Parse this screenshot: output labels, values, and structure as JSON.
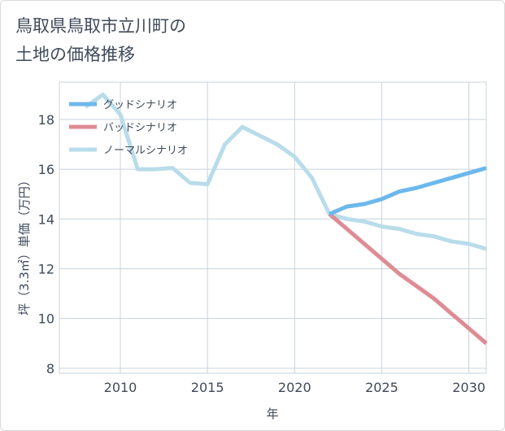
{
  "title": "鳥取県鳥取市立川町の\n土地の価格推移",
  "chart_data": {
    "type": "line",
    "xlabel": "年",
    "ylabel": "坪（3.3㎡）単価（万円）",
    "xlim": [
      2006.5,
      2031
    ],
    "ylim": [
      7.8,
      19.5
    ],
    "xticks": [
      2010,
      2015,
      2020,
      2025,
      2030
    ],
    "yticks": [
      8,
      10,
      12,
      14,
      16,
      18
    ],
    "grid": true,
    "legend_position": "top-left",
    "series": [
      {
        "name": "グッドシナリオ",
        "color": "#6cb8ec",
        "x": [
          2022,
          2023,
          2024,
          2025,
          2026,
          2027,
          2028,
          2029,
          2030,
          2031
        ],
        "y": [
          14.2,
          14.5,
          14.6,
          14.8,
          15.1,
          15.25,
          15.45,
          15.65,
          15.85,
          16.05
        ]
      },
      {
        "name": "バッドシナリオ",
        "color": "#de8c94",
        "x": [
          2022,
          2023,
          2024,
          2025,
          2026,
          2027,
          2028,
          2029,
          2030,
          2031
        ],
        "y": [
          14.2,
          13.6,
          13.0,
          12.4,
          11.8,
          11.3,
          10.8,
          10.2,
          9.6,
          9.0
        ]
      },
      {
        "name": "ノーマルシナリオ",
        "color": "#b8dcea",
        "x": [
          2008,
          2009,
          2010,
          2011,
          2012,
          2013,
          2014,
          2015,
          2016,
          2017,
          2018,
          2019,
          2020,
          2021,
          2022,
          2023,
          2024,
          2025,
          2026,
          2027,
          2028,
          2029,
          2030,
          2031
        ],
        "y": [
          18.5,
          19.0,
          18.2,
          16.0,
          16.0,
          16.05,
          15.45,
          15.4,
          17.0,
          17.7,
          17.35,
          17.0,
          16.5,
          15.65,
          14.2,
          14.0,
          13.9,
          13.7,
          13.6,
          13.4,
          13.3,
          13.1,
          13.0,
          12.8
        ]
      }
    ]
  }
}
